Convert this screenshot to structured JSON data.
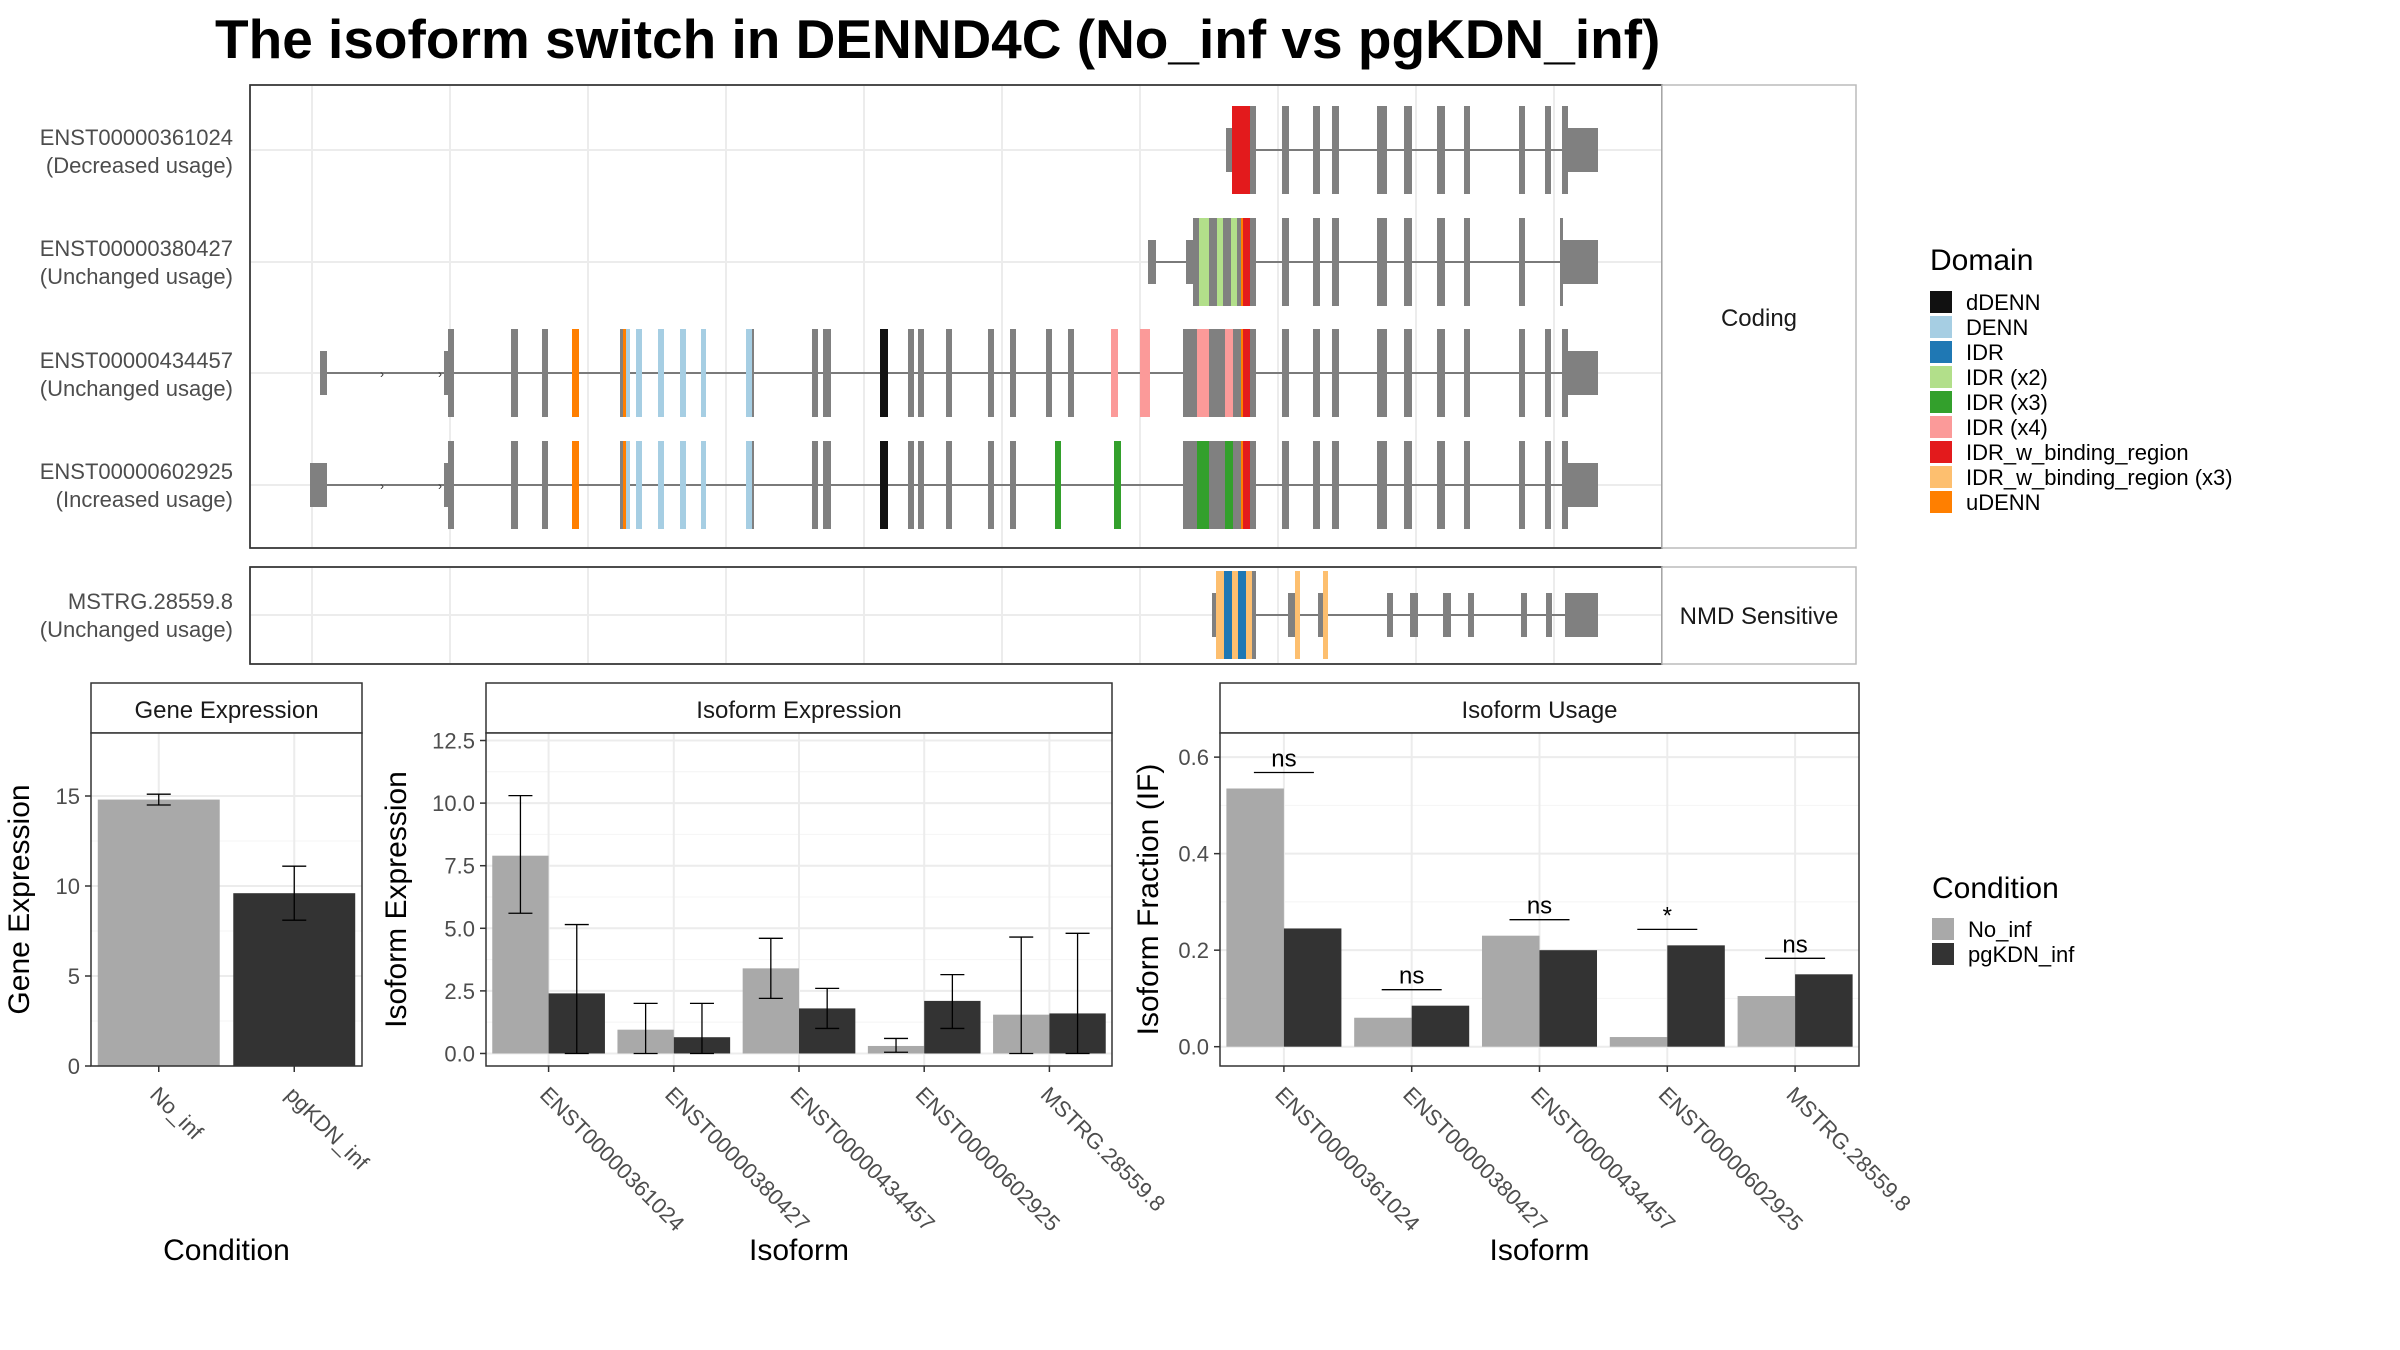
{
  "title": "The isoform switch in DENND4C (No_inf vs pgKDN_inf)",
  "colors": {
    "no_inf": "#a9a9a9",
    "pgkdn_inf": "#333333",
    "exon": "#808080",
    "panel_border": "#333333",
    "strip_border": "#bbbbbb",
    "grid": "#ececec"
  },
  "structure": {
    "strips": [
      "Coding",
      "NMD Sensitive"
    ],
    "transcripts": [
      {
        "id": "ENST00000361024",
        "usage": "(Decreased usage)"
      },
      {
        "id": "ENST00000380427",
        "usage": "(Unchanged usage)"
      },
      {
        "id": "ENST00000434457",
        "usage": "(Unchanged usage)"
      },
      {
        "id": "ENST00000602925",
        "usage": "(Increased usage)"
      },
      {
        "id": "MSTRG.28559.8",
        "usage": "(Unchanged usage)"
      }
    ]
  },
  "legend_domain": {
    "title": "Domain",
    "items": [
      {
        "label": "dDENN",
        "color": "#111111"
      },
      {
        "label": "DENN",
        "color": "#a6cee3"
      },
      {
        "label": "IDR",
        "color": "#1f78b4"
      },
      {
        "label": "IDR (x2)",
        "color": "#b2df8a"
      },
      {
        "label": "IDR (x3)",
        "color": "#33a02c"
      },
      {
        "label": "IDR (x4)",
        "color": "#fb9a99"
      },
      {
        "label": "IDR_w_binding_region",
        "color": "#e31a1c"
      },
      {
        "label": "IDR_w_binding_region (x3)",
        "color": "#fdbf6f"
      },
      {
        "label": "uDENN",
        "color": "#ff7f00"
      }
    ]
  },
  "legend_condition": {
    "title": "Condition",
    "items": [
      {
        "label": "No_inf",
        "color": "#a9a9a9"
      },
      {
        "label": "pgKDN_inf",
        "color": "#333333"
      }
    ]
  },
  "chart_data": [
    {
      "type": "bar",
      "title": "Gene Expression",
      "xlabel": "Condition",
      "ylabel": "Gene Expression",
      "categories": [
        "No_inf",
        "pgKDN_inf"
      ],
      "values": [
        14.8,
        9.6
      ],
      "error_low": [
        14.5,
        8.1
      ],
      "error_high": [
        15.1,
        11.1
      ],
      "ylim": [
        0,
        18.5
      ],
      "yticks": [
        0,
        5,
        10,
        15
      ],
      "ytick_labels": [
        "0",
        "5",
        "10",
        "15"
      ]
    },
    {
      "type": "bar",
      "title": "Isoform Expression",
      "xlabel": "Isoform",
      "ylabel": "Isoform Expression",
      "categories": [
        "ENST00000361024",
        "ENST00000380427",
        "ENST00000434457",
        "ENST00000602925",
        "MSTRG.28559.8"
      ],
      "series": [
        {
          "name": "No_inf",
          "values": [
            7.9,
            0.95,
            3.4,
            0.3,
            1.55
          ],
          "error_low": [
            5.6,
            0.0,
            2.2,
            0.05,
            0.0
          ],
          "error_high": [
            10.3,
            2.0,
            4.6,
            0.6,
            4.65
          ]
        },
        {
          "name": "pgKDN_inf",
          "values": [
            2.4,
            0.65,
            1.8,
            2.1,
            1.6
          ],
          "error_low": [
            0.0,
            0.0,
            1.0,
            1.0,
            0.0
          ],
          "error_high": [
            5.15,
            2.0,
            2.6,
            3.15,
            4.8
          ]
        }
      ],
      "ylim": [
        -0.5,
        12.8
      ],
      "yticks": [
        0,
        2.5,
        5,
        7.5,
        10,
        12.5
      ],
      "ytick_labels": [
        "0.0",
        "2.5",
        "5.0",
        "7.5",
        "10.0",
        "12.5"
      ]
    },
    {
      "type": "bar",
      "title": "Isoform Usage",
      "xlabel": "Isoform",
      "ylabel": "Isoform Fraction (IF)",
      "categories": [
        "ENST00000361024",
        "ENST00000380427",
        "ENST00000434457",
        "ENST00000602925",
        "MSTRG.28559.8"
      ],
      "series": [
        {
          "name": "No_inf",
          "values": [
            0.535,
            0.06,
            0.23,
            0.02,
            0.105
          ]
        },
        {
          "name": "pgKDN_inf",
          "values": [
            0.245,
            0.085,
            0.2,
            0.21,
            0.15
          ]
        }
      ],
      "significance": [
        "ns",
        "ns",
        "ns",
        "*",
        "ns"
      ],
      "ylim": [
        -0.04,
        0.65
      ],
      "yticks": [
        0,
        0.2,
        0.4,
        0.6
      ],
      "ytick_labels": [
        "0.0",
        "0.2",
        "0.4",
        "0.6"
      ]
    }
  ]
}
